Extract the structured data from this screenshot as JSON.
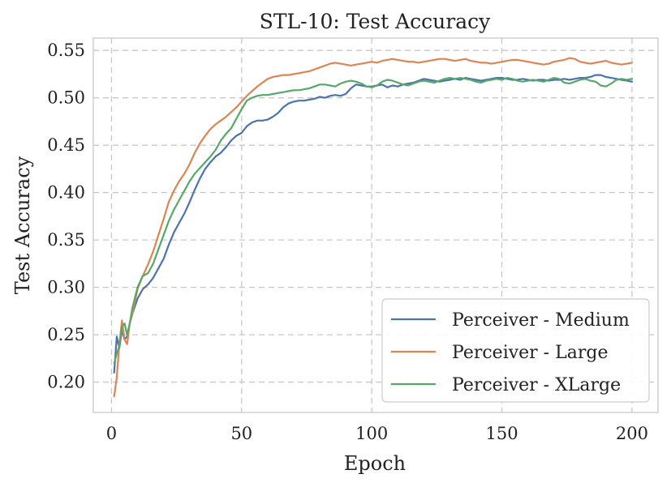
{
  "chart_data": {
    "type": "line",
    "title": "STL-10: Test Accuracy",
    "xlabel": "Epoch",
    "ylabel": "Test Accuracy",
    "xlim": [
      -7,
      210
    ],
    "ylim": [
      0.168,
      0.563
    ],
    "xticks": [
      0,
      50,
      100,
      150,
      200
    ],
    "xtick_labels": [
      "0",
      "50",
      "100",
      "150",
      "200"
    ],
    "yticks": [
      0.2,
      0.25,
      0.3,
      0.35,
      0.4,
      0.45,
      0.5,
      0.55
    ],
    "ytick_labels": [
      "0.20",
      "0.25",
      "0.30",
      "0.35",
      "0.40",
      "0.45",
      "0.50",
      "0.55"
    ],
    "grid": true,
    "legend_position": "lower-right",
    "series": [
      {
        "name": "Perceiver - Medium",
        "color": "#4c72b0",
        "points": [
          [
            1,
            0.21
          ],
          [
            2,
            0.248
          ],
          [
            3,
            0.236
          ],
          [
            4,
            0.255
          ],
          [
            5,
            0.245
          ],
          [
            6,
            0.248
          ],
          [
            7,
            0.262
          ],
          [
            8,
            0.272
          ],
          [
            10,
            0.288
          ],
          [
            12,
            0.298
          ],
          [
            14,
            0.303
          ],
          [
            16,
            0.31
          ],
          [
            18,
            0.32
          ],
          [
            20,
            0.33
          ],
          [
            22,
            0.345
          ],
          [
            24,
            0.358
          ],
          [
            26,
            0.368
          ],
          [
            28,
            0.378
          ],
          [
            30,
            0.39
          ],
          [
            32,
            0.403
          ],
          [
            34,
            0.415
          ],
          [
            36,
            0.425
          ],
          [
            38,
            0.432
          ],
          [
            40,
            0.438
          ],
          [
            42,
            0.442
          ],
          [
            44,
            0.448
          ],
          [
            46,
            0.455
          ],
          [
            48,
            0.46
          ],
          [
            50,
            0.463
          ],
          [
            52,
            0.47
          ],
          [
            54,
            0.474
          ],
          [
            56,
            0.476
          ],
          [
            58,
            0.476
          ],
          [
            60,
            0.477
          ],
          [
            62,
            0.48
          ],
          [
            64,
            0.484
          ],
          [
            66,
            0.49
          ],
          [
            68,
            0.494
          ],
          [
            70,
            0.496
          ],
          [
            72,
            0.497
          ],
          [
            74,
            0.497
          ],
          [
            76,
            0.498
          ],
          [
            78,
            0.499
          ],
          [
            80,
            0.501
          ],
          [
            82,
            0.5
          ],
          [
            84,
            0.502
          ],
          [
            86,
            0.503
          ],
          [
            88,
            0.502
          ],
          [
            90,
            0.504
          ],
          [
            92,
            0.51
          ],
          [
            94,
            0.514
          ],
          [
            96,
            0.513
          ],
          [
            98,
            0.512
          ],
          [
            100,
            0.512
          ],
          [
            102,
            0.513
          ],
          [
            104,
            0.514
          ],
          [
            106,
            0.511
          ],
          [
            108,
            0.513
          ],
          [
            110,
            0.512
          ],
          [
            112,
            0.514
          ],
          [
            114,
            0.515
          ],
          [
            116,
            0.516
          ],
          [
            118,
            0.518
          ],
          [
            120,
            0.52
          ],
          [
            122,
            0.519
          ],
          [
            124,
            0.518
          ],
          [
            126,
            0.517
          ],
          [
            128,
            0.518
          ],
          [
            130,
            0.519
          ],
          [
            132,
            0.52
          ],
          [
            134,
            0.519
          ],
          [
            136,
            0.521
          ],
          [
            138,
            0.52
          ],
          [
            140,
            0.519
          ],
          [
            142,
            0.518
          ],
          [
            144,
            0.519
          ],
          [
            146,
            0.52
          ],
          [
            148,
            0.521
          ],
          [
            150,
            0.521
          ],
          [
            152,
            0.52
          ],
          [
            154,
            0.519
          ],
          [
            156,
            0.519
          ],
          [
            158,
            0.52
          ],
          [
            160,
            0.519
          ],
          [
            162,
            0.518
          ],
          [
            164,
            0.519
          ],
          [
            166,
            0.519
          ],
          [
            168,
            0.518
          ],
          [
            170,
            0.519
          ],
          [
            172,
            0.519
          ],
          [
            174,
            0.52
          ],
          [
            176,
            0.519
          ],
          [
            178,
            0.52
          ],
          [
            180,
            0.521
          ],
          [
            182,
            0.521
          ],
          [
            184,
            0.522
          ],
          [
            186,
            0.524
          ],
          [
            188,
            0.524
          ],
          [
            190,
            0.522
          ],
          [
            192,
            0.521
          ],
          [
            194,
            0.52
          ],
          [
            196,
            0.519
          ],
          [
            198,
            0.518
          ],
          [
            200,
            0.517
          ]
        ]
      },
      {
        "name": "Perceiver - Large",
        "color": "#dd8452",
        "points": [
          [
            1,
            0.185
          ],
          [
            2,
            0.205
          ],
          [
            3,
            0.24
          ],
          [
            4,
            0.265
          ],
          [
            5,
            0.245
          ],
          [
            6,
            0.24
          ],
          [
            7,
            0.262
          ],
          [
            8,
            0.272
          ],
          [
            10,
            0.298
          ],
          [
            12,
            0.312
          ],
          [
            14,
            0.324
          ],
          [
            16,
            0.338
          ],
          [
            18,
            0.355
          ],
          [
            20,
            0.372
          ],
          [
            22,
            0.39
          ],
          [
            24,
            0.402
          ],
          [
            26,
            0.412
          ],
          [
            28,
            0.42
          ],
          [
            30,
            0.43
          ],
          [
            32,
            0.442
          ],
          [
            34,
            0.452
          ],
          [
            36,
            0.46
          ],
          [
            38,
            0.467
          ],
          [
            40,
            0.472
          ],
          [
            42,
            0.476
          ],
          [
            44,
            0.48
          ],
          [
            46,
            0.485
          ],
          [
            48,
            0.49
          ],
          [
            50,
            0.496
          ],
          [
            52,
            0.502
          ],
          [
            54,
            0.507
          ],
          [
            56,
            0.512
          ],
          [
            58,
            0.516
          ],
          [
            60,
            0.52
          ],
          [
            62,
            0.522
          ],
          [
            64,
            0.523
          ],
          [
            66,
            0.524
          ],
          [
            68,
            0.524
          ],
          [
            70,
            0.525
          ],
          [
            72,
            0.526
          ],
          [
            74,
            0.527
          ],
          [
            76,
            0.528
          ],
          [
            78,
            0.53
          ],
          [
            80,
            0.532
          ],
          [
            82,
            0.534
          ],
          [
            84,
            0.536
          ],
          [
            86,
            0.537
          ],
          [
            88,
            0.536
          ],
          [
            90,
            0.535
          ],
          [
            92,
            0.534
          ],
          [
            94,
            0.535
          ],
          [
            96,
            0.536
          ],
          [
            98,
            0.537
          ],
          [
            100,
            0.538
          ],
          [
            102,
            0.537
          ],
          [
            104,
            0.539
          ],
          [
            106,
            0.54
          ],
          [
            108,
            0.541
          ],
          [
            110,
            0.54
          ],
          [
            112,
            0.539
          ],
          [
            114,
            0.538
          ],
          [
            116,
            0.538
          ],
          [
            118,
            0.537
          ],
          [
            120,
            0.538
          ],
          [
            122,
            0.539
          ],
          [
            124,
            0.54
          ],
          [
            126,
            0.541
          ],
          [
            128,
            0.541
          ],
          [
            130,
            0.54
          ],
          [
            132,
            0.539
          ],
          [
            134,
            0.54
          ],
          [
            136,
            0.541
          ],
          [
            138,
            0.539
          ],
          [
            140,
            0.538
          ],
          [
            142,
            0.537
          ],
          [
            144,
            0.537
          ],
          [
            146,
            0.536
          ],
          [
            148,
            0.537
          ],
          [
            150,
            0.538
          ],
          [
            152,
            0.539
          ],
          [
            154,
            0.54
          ],
          [
            156,
            0.54
          ],
          [
            158,
            0.539
          ],
          [
            160,
            0.538
          ],
          [
            162,
            0.537
          ],
          [
            164,
            0.536
          ],
          [
            166,
            0.535
          ],
          [
            168,
            0.536
          ],
          [
            170,
            0.538
          ],
          [
            172,
            0.539
          ],
          [
            174,
            0.54
          ],
          [
            176,
            0.542
          ],
          [
            178,
            0.541
          ],
          [
            180,
            0.538
          ],
          [
            182,
            0.537
          ],
          [
            184,
            0.536
          ],
          [
            186,
            0.537
          ],
          [
            188,
            0.538
          ],
          [
            190,
            0.539
          ],
          [
            192,
            0.537
          ],
          [
            194,
            0.536
          ],
          [
            196,
            0.535
          ],
          [
            198,
            0.536
          ],
          [
            200,
            0.537
          ]
        ]
      },
      {
        "name": "Perceiver - XLarge",
        "color": "#55a868",
        "points": [
          [
            1,
            0.22
          ],
          [
            2,
            0.23
          ],
          [
            3,
            0.238
          ],
          [
            4,
            0.258
          ],
          [
            5,
            0.262
          ],
          [
            6,
            0.25
          ],
          [
            7,
            0.262
          ],
          [
            8,
            0.278
          ],
          [
            10,
            0.3
          ],
          [
            12,
            0.312
          ],
          [
            14,
            0.315
          ],
          [
            16,
            0.325
          ],
          [
            18,
            0.34
          ],
          [
            20,
            0.355
          ],
          [
            22,
            0.37
          ],
          [
            24,
            0.382
          ],
          [
            26,
            0.392
          ],
          [
            28,
            0.402
          ],
          [
            30,
            0.412
          ],
          [
            32,
            0.42
          ],
          [
            34,
            0.426
          ],
          [
            36,
            0.432
          ],
          [
            38,
            0.438
          ],
          [
            40,
            0.445
          ],
          [
            42,
            0.455
          ],
          [
            44,
            0.462
          ],
          [
            46,
            0.468
          ],
          [
            48,
            0.478
          ],
          [
            50,
            0.488
          ],
          [
            52,
            0.497
          ],
          [
            54,
            0.5
          ],
          [
            56,
            0.502
          ],
          [
            58,
            0.503
          ],
          [
            60,
            0.503
          ],
          [
            62,
            0.504
          ],
          [
            64,
            0.505
          ],
          [
            66,
            0.506
          ],
          [
            68,
            0.507
          ],
          [
            70,
            0.508
          ],
          [
            72,
            0.508
          ],
          [
            74,
            0.509
          ],
          [
            76,
            0.51
          ],
          [
            78,
            0.512
          ],
          [
            80,
            0.514
          ],
          [
            82,
            0.514
          ],
          [
            84,
            0.513
          ],
          [
            86,
            0.512
          ],
          [
            88,
            0.515
          ],
          [
            90,
            0.517
          ],
          [
            92,
            0.518
          ],
          [
            94,
            0.517
          ],
          [
            96,
            0.515
          ],
          [
            98,
            0.512
          ],
          [
            100,
            0.511
          ],
          [
            102,
            0.513
          ],
          [
            104,
            0.517
          ],
          [
            106,
            0.519
          ],
          [
            108,
            0.518
          ],
          [
            110,
            0.516
          ],
          [
            112,
            0.514
          ],
          [
            114,
            0.513
          ],
          [
            116,
            0.515
          ],
          [
            118,
            0.517
          ],
          [
            120,
            0.518
          ],
          [
            122,
            0.517
          ],
          [
            124,
            0.516
          ],
          [
            126,
            0.518
          ],
          [
            128,
            0.52
          ],
          [
            130,
            0.521
          ],
          [
            132,
            0.52
          ],
          [
            134,
            0.521
          ],
          [
            136,
            0.52
          ],
          [
            138,
            0.519
          ],
          [
            140,
            0.517
          ],
          [
            142,
            0.516
          ],
          [
            144,
            0.518
          ],
          [
            146,
            0.519
          ],
          [
            148,
            0.52
          ],
          [
            150,
            0.519
          ],
          [
            152,
            0.521
          ],
          [
            154,
            0.52
          ],
          [
            156,
            0.518
          ],
          [
            158,
            0.517
          ],
          [
            160,
            0.518
          ],
          [
            162,
            0.519
          ],
          [
            164,
            0.518
          ],
          [
            166,
            0.517
          ],
          [
            168,
            0.519
          ],
          [
            170,
            0.521
          ],
          [
            172,
            0.52
          ],
          [
            174,
            0.516
          ],
          [
            176,
            0.515
          ],
          [
            178,
            0.517
          ],
          [
            180,
            0.519
          ],
          [
            182,
            0.52
          ],
          [
            184,
            0.518
          ],
          [
            186,
            0.517
          ],
          [
            188,
            0.513
          ],
          [
            190,
            0.512
          ],
          [
            192,
            0.515
          ],
          [
            194,
            0.519
          ],
          [
            196,
            0.52
          ],
          [
            198,
            0.519
          ],
          [
            200,
            0.52
          ]
        ]
      }
    ]
  }
}
